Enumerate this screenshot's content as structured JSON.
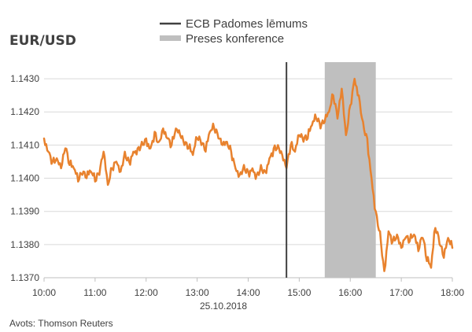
{
  "chart_data": {
    "type": "line",
    "title": "EUR/USD",
    "date_label": "25.10.2018",
    "source": "Avots: Thomson Reuters",
    "x_ticks": [
      "10:00",
      "11:00",
      "12:00",
      "13:00",
      "14:00",
      "15:00",
      "16:00",
      "17:00",
      "18:00"
    ],
    "y_ticks": [
      "1.1370",
      "1.1380",
      "1.1390",
      "1.1400",
      "1.1410",
      "1.1420",
      "1.1430"
    ],
    "xlim": [
      "10:00",
      "18:00"
    ],
    "ylim": [
      1.137,
      1.1435
    ],
    "grid": true,
    "legend_position": "top",
    "legend": {
      "decision_label": "ECB Padomes lēmums",
      "conference_label": "Preses konference"
    },
    "annotations": {
      "decision_time": "14:45",
      "conference_start": "15:30",
      "conference_end": "16:30"
    },
    "colors": {
      "series": "#e8822e",
      "decision": "#404040",
      "conference": "#bfbfbf"
    },
    "series": [
      {
        "x": [
          "10:00",
          "10:05",
          "10:10",
          "10:15",
          "10:20",
          "10:25",
          "10:30",
          "10:35",
          "10:40",
          "10:45",
          "10:50",
          "10:55",
          "11:00",
          "11:05",
          "11:10",
          "11:15",
          "11:20",
          "11:25",
          "11:30",
          "11:35",
          "11:40",
          "11:45",
          "11:50",
          "11:55",
          "12:00",
          "12:05",
          "12:10",
          "12:15",
          "12:20",
          "12:25",
          "12:30",
          "12:35",
          "12:40",
          "12:45",
          "12:50",
          "12:55",
          "13:00",
          "13:05",
          "13:10",
          "13:15",
          "13:20",
          "13:25",
          "13:30",
          "13:35",
          "13:40",
          "13:45",
          "13:50",
          "13:55",
          "14:00",
          "14:05",
          "14:10",
          "14:15",
          "14:20",
          "14:25",
          "14:30",
          "14:35",
          "14:40",
          "14:45",
          "14:50",
          "14:55",
          "15:00",
          "15:05",
          "15:10",
          "15:15",
          "15:20",
          "15:25",
          "15:30",
          "15:35",
          "15:40",
          "15:45",
          "15:50",
          "15:55",
          "16:00",
          "16:05",
          "16:10",
          "16:15",
          "16:20",
          "16:25",
          "16:30",
          "16:35",
          "16:40",
          "16:45",
          "16:50",
          "16:55",
          "17:00",
          "17:05",
          "17:10",
          "17:15",
          "17:20",
          "17:25",
          "17:30",
          "17:35",
          "17:40",
          "17:45",
          "17:50",
          "17:55",
          "18:00"
        ],
        "values": [
          1.1412,
          1.1408,
          1.1405,
          1.1406,
          1.1403,
          1.1409,
          1.1404,
          1.1403,
          1.1399,
          1.1401,
          1.14,
          1.1402,
          1.1399,
          1.1401,
          1.1408,
          1.1398,
          1.1403,
          1.1405,
          1.1402,
          1.1408,
          1.1405,
          1.1408,
          1.1409,
          1.1411,
          1.1412,
          1.1409,
          1.1414,
          1.1411,
          1.1415,
          1.1412,
          1.141,
          1.1415,
          1.1413,
          1.141,
          1.1409,
          1.1407,
          1.1412,
          1.141,
          1.1408,
          1.1414,
          1.1415,
          1.1412,
          1.141,
          1.1411,
          1.1408,
          1.1403,
          1.1401,
          1.1404,
          1.1402,
          1.1403,
          1.1401,
          1.1404,
          1.1402,
          1.1406,
          1.1409,
          1.141,
          1.1407,
          1.1403,
          1.141,
          1.1408,
          1.1413,
          1.1411,
          1.1412,
          1.1416,
          1.1418,
          1.1415,
          1.1417,
          1.142,
          1.1425,
          1.1418,
          1.1427,
          1.1413,
          1.1422,
          1.143,
          1.1425,
          1.1417,
          1.1412,
          1.14,
          1.139,
          1.1384,
          1.1372,
          1.1384,
          1.1381,
          1.1383,
          1.1379,
          1.1382,
          1.1381,
          1.1383,
          1.1378,
          1.1382,
          1.1375,
          1.1373,
          1.1385,
          1.138,
          1.1376,
          1.1382,
          1.1379
        ]
      }
    ]
  }
}
